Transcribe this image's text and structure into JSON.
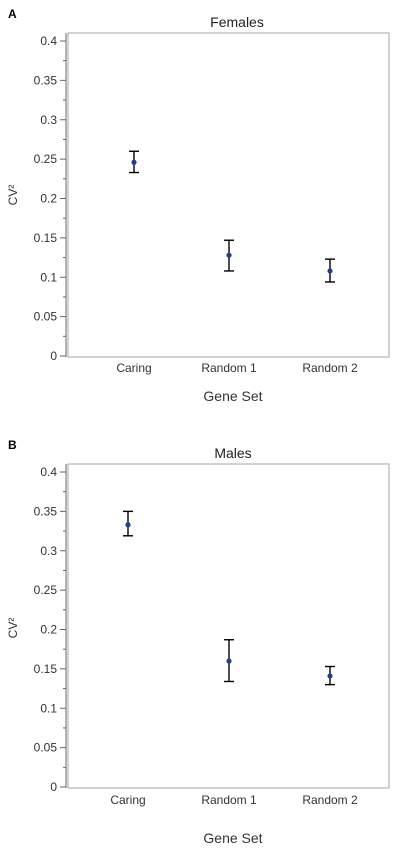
{
  "chart_data": [
    {
      "type": "scatter",
      "panel": "A",
      "title": "Females",
      "xlabel": "Gene Set",
      "ylabel": "CV²",
      "categories": [
        "Caring",
        "Random 1",
        "Random 2"
      ],
      "values": [
        0.246,
        0.128,
        0.108
      ],
      "error_low": [
        0.233,
        0.108,
        0.094
      ],
      "error_high": [
        0.26,
        0.147,
        0.123
      ],
      "ylim": [
        0,
        0.41
      ],
      "yticks": [
        "0",
        "0.05",
        "0.1",
        "0.15",
        "0.2",
        "0.25",
        "0.3",
        "0.35",
        "0.4"
      ],
      "grid": false,
      "point_color": "#1f3f8f"
    },
    {
      "type": "scatter",
      "panel": "B",
      "title": "Males",
      "xlabel": "Gene Set",
      "ylabel": "CV²",
      "categories": [
        "Caring",
        "Random 1",
        "Random 2"
      ],
      "values": [
        0.333,
        0.16,
        0.141
      ],
      "error_low": [
        0.319,
        0.134,
        0.13
      ],
      "error_high": [
        0.35,
        0.187,
        0.153
      ],
      "ylim": [
        0,
        0.41
      ],
      "yticks": [
        "0",
        "0.05",
        "0.1",
        "0.15",
        "0.2",
        "0.25",
        "0.3",
        "0.35",
        "0.4"
      ],
      "grid": false,
      "point_color": "#1f3f8f"
    }
  ]
}
